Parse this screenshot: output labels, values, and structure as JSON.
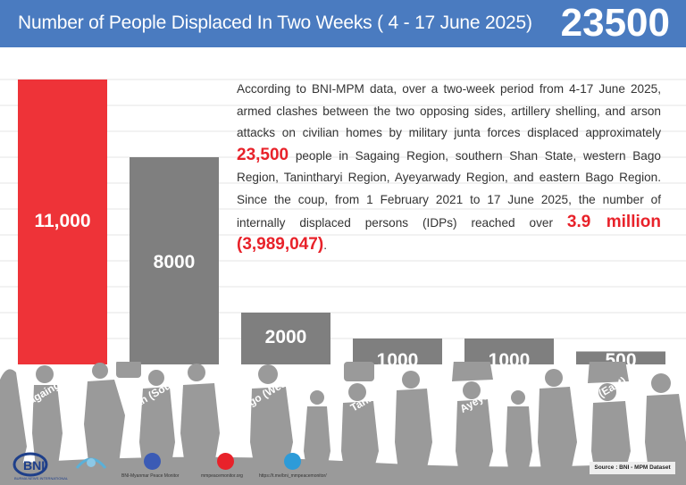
{
  "header": {
    "title": "Number of People Displaced In Two Weeks ( 4 - 17 June 2025)",
    "total": "23500",
    "background_color": "#4a7bc0"
  },
  "description": {
    "part1": "According to BNI-MPM data, over a two-week period from 4-17 June 2025, armed clashes between the two opposing sides, artillery shelling, and arson attacks on civilian homes by military junta forces displaced approximately ",
    "highlight1": "23,500",
    "part2": " people in Sagaing Region, southern Shan State, western Bago Region, Tanintharyi Region, Ayeyarwady Region, and eastern Bago Region. Since the coup, from 1 February 2021 to 17 June 2025, the number of internally displaced persons (IDPs) reached over ",
    "highlight2": "3.9 million (3,989,047)",
    "part3": ".",
    "highlight_color": "#e8222a"
  },
  "chart_data": {
    "type": "bar",
    "title": "Number of People Displaced In Two Weeks ( 4 - 17 June 2025)",
    "categories": [
      "Sagaing",
      "Shan (South)",
      "Bago (West)",
      "Tanintharyi",
      "Ayeyarwady",
      "Bago (East)"
    ],
    "values": [
      11000,
      8000,
      2000,
      1000,
      1000,
      500
    ],
    "value_labels": [
      "11,000",
      "8000",
      "2000",
      "1000",
      "1000",
      "500"
    ],
    "colors": [
      "#ee3338",
      "#7f7f7f",
      "#7f7f7f",
      "#7f7f7f",
      "#7f7f7f",
      "#7f7f7f"
    ],
    "ylim": [
      0,
      11000
    ],
    "grid": true,
    "xlabel": "",
    "ylabel": ""
  },
  "footer": {
    "bni_logo_text": "BURMA NEWS INTERNATIONAL",
    "facebook_label": "BNI-Myanmar Peace Monitor",
    "website_label": "mmpeacemonitor.org",
    "telegram_label": "https://t.me/bni_mmpeacemonitor/",
    "source": "Source : BNI - MPM Dataset",
    "icons": [
      "bni-logo-icon",
      "mpm-logo-icon",
      "facebook-icon",
      "dribbble-icon",
      "telegram-icon"
    ]
  }
}
